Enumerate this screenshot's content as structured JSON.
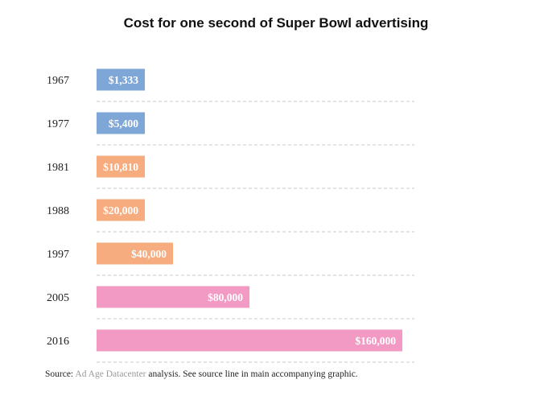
{
  "title": "Cost for one second of Super Bowl advertising",
  "colors": {
    "blue": "#7ea7d8",
    "orange": "#f7ac7f",
    "pink": "#f39ac4",
    "grid": "#c8c8c8",
    "label_text": "#ffffff"
  },
  "chart_data": {
    "type": "bar",
    "orientation": "horizontal",
    "categories": [
      "1967",
      "1977",
      "1981",
      "1988",
      "1997",
      "2005",
      "2016"
    ],
    "values": [
      1333,
      5400,
      10810,
      20000,
      40000,
      80000,
      160000
    ],
    "data_labels": [
      "$1,333",
      "$5,400",
      "$10,810",
      "$20,000",
      "$40,000",
      "$80,000",
      "$160,000"
    ],
    "bar_colors": [
      "blue",
      "blue",
      "orange",
      "orange",
      "orange",
      "pink",
      "pink"
    ],
    "title": "Cost for one second of Super Bowl advertising",
    "xlabel": "",
    "ylabel": "",
    "xlim": [
      0,
      160000
    ],
    "grid": "dashed horizontal separators between rows",
    "legend": "none"
  },
  "source": {
    "prefix": "Source:",
    "link_text": "Ad Age Datacenter",
    "suffix": "analysis. See source line in main accompanying graphic."
  }
}
